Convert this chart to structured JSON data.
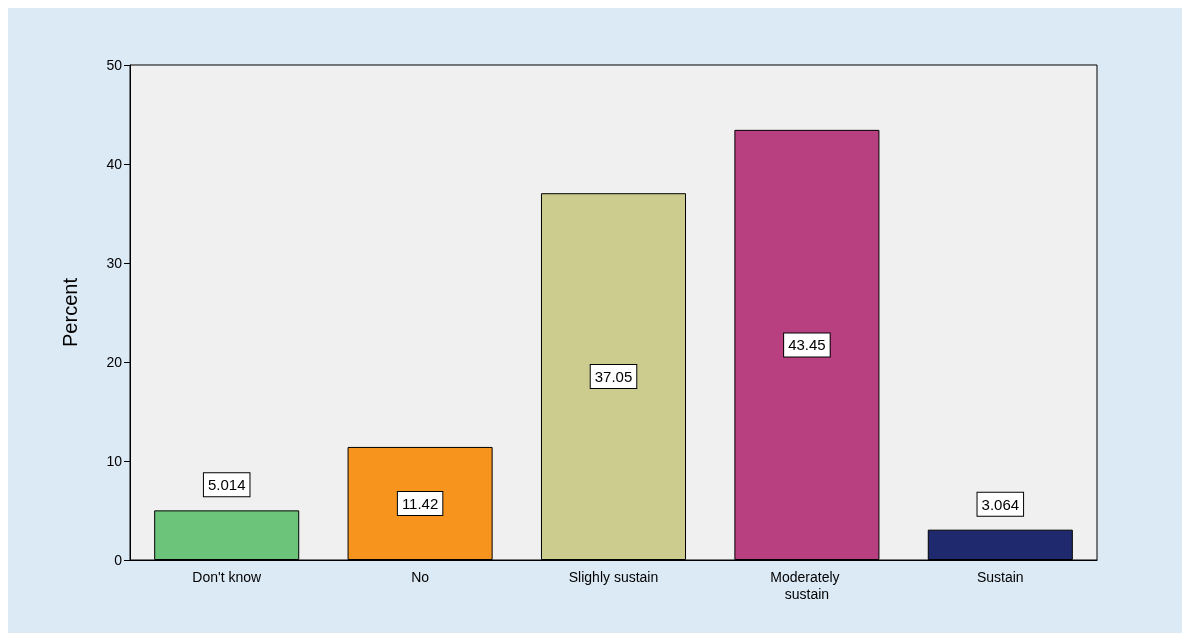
{
  "chart_data": {
    "type": "bar",
    "ylabel": "Percent",
    "categories": [
      "Don't know",
      "No",
      "Slighly sustain",
      "Moderately sustain",
      "Sustain"
    ],
    "values": [
      5.014,
      11.42,
      37.05,
      43.45,
      3.064
    ],
    "colors": [
      "#6cc47a",
      "#f7941d",
      "#cccc8f",
      "#b83f80",
      "#1f2a6e"
    ],
    "ylim": [
      0,
      50
    ],
    "yticks": [
      0,
      10,
      20,
      30,
      40,
      50
    ],
    "grid": false,
    "data_labels": true
  }
}
